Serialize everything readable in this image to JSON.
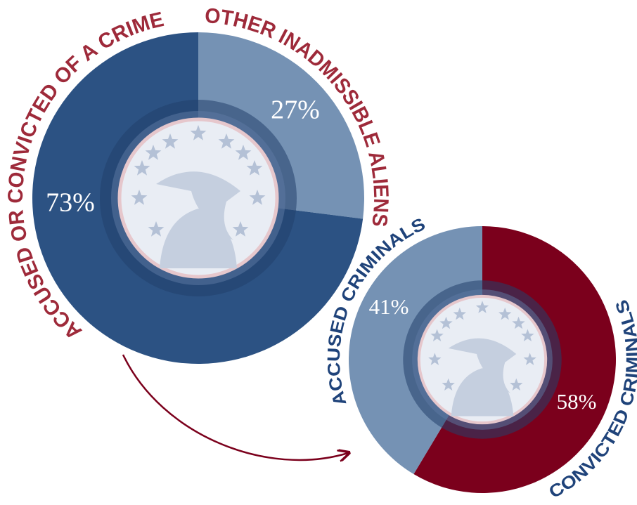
{
  "chart_data": [
    {
      "type": "pie",
      "categories": [
        "OTHER INADMISSIBLE ALIENS",
        "ACCUSED OR CONVICTED OF A CRIME"
      ],
      "values": [
        27,
        73
      ],
      "value_labels": [
        "27%",
        "73%"
      ],
      "colors": [
        "#7592b4",
        "#2c5283"
      ],
      "label_color": "#9e2a3a"
    },
    {
      "type": "pie",
      "categories": [
        "CONVICTED CRIMINALS",
        "ACCUSED CRIMINALS"
      ],
      "values": [
        58,
        41
      ],
      "value_labels": [
        "58%",
        "41%"
      ],
      "colors": [
        "#7b001c",
        "#7592b4"
      ],
      "label_color": "#1f437a"
    }
  ]
}
